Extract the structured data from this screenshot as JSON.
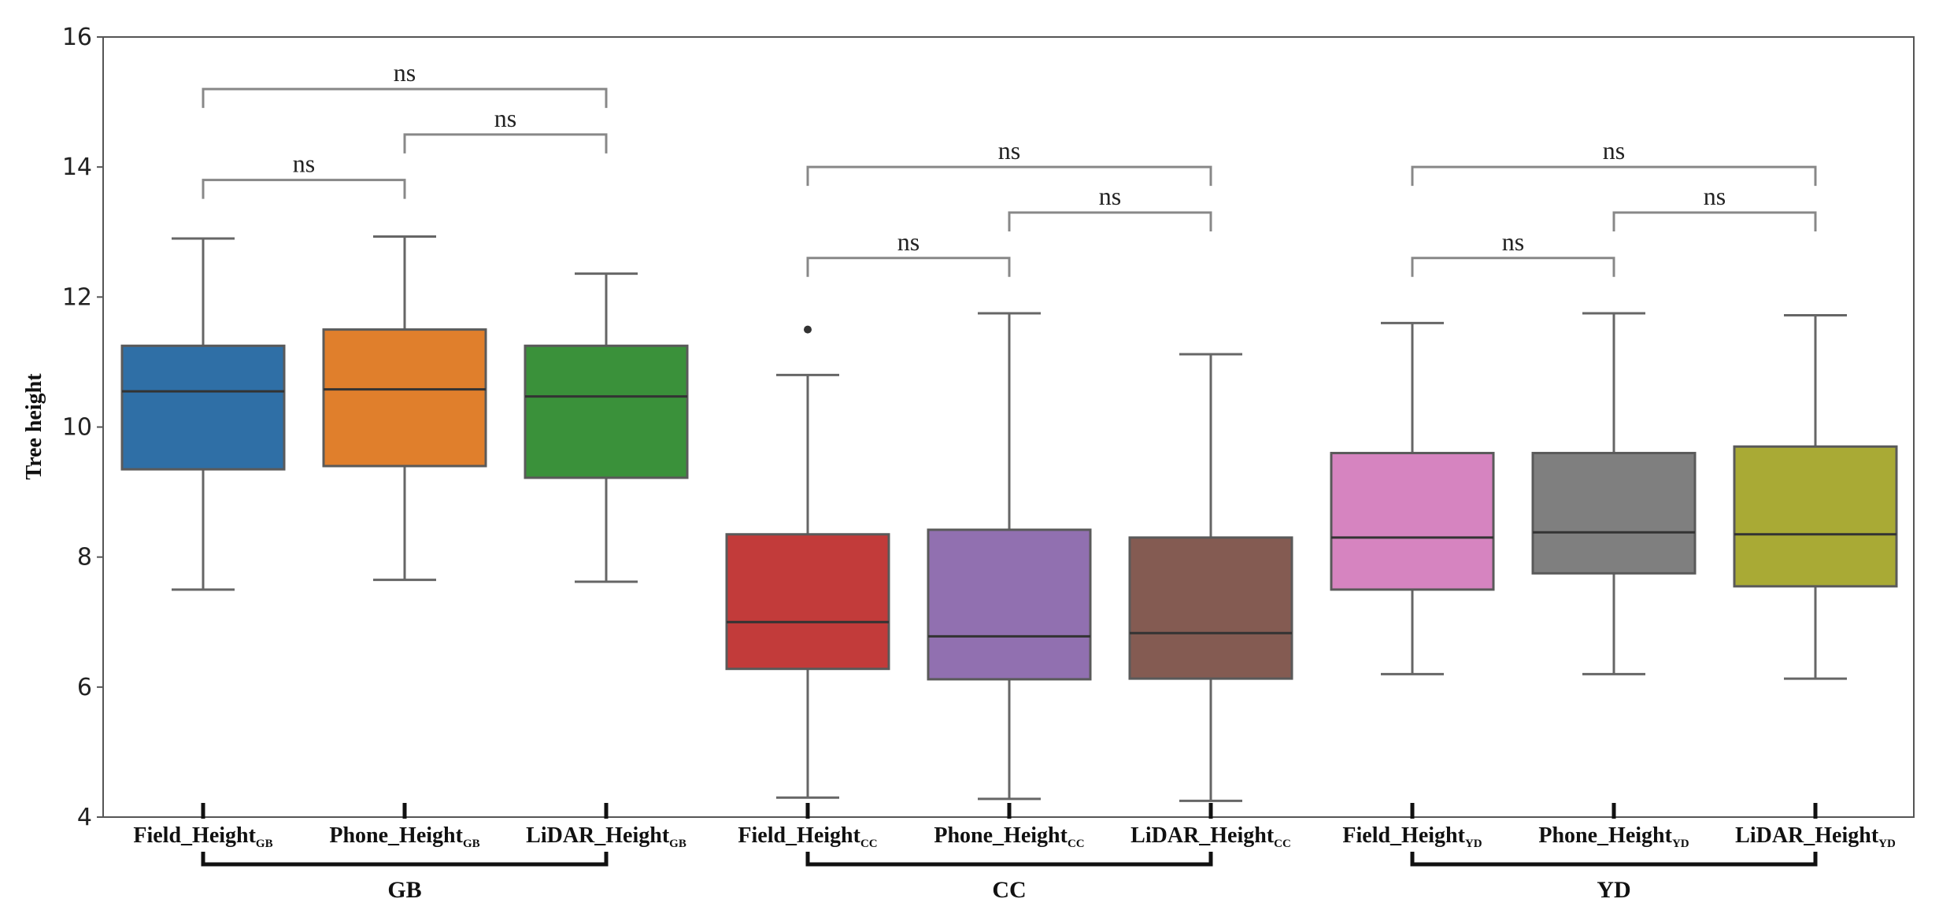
{
  "chart_data": {
    "type": "box",
    "title": "",
    "xlabel": "",
    "ylabel": "Tree height",
    "ylim": [
      4,
      16
    ],
    "yticks": [
      "4",
      "6",
      "8",
      "10",
      "12",
      "14",
      "16"
    ],
    "grid": false,
    "categories": [
      {
        "main": "Field_Height",
        "sub": "GB",
        "color": "#2f6fa6",
        "whisker_low": 7.5,
        "q1": 9.35,
        "median": 10.55,
        "q3": 11.25,
        "whisker_high": 12.9,
        "outliers": []
      },
      {
        "main": "Phone_Height",
        "sub": "GB",
        "color": "#e07f2c",
        "whisker_low": 7.65,
        "q1": 9.4,
        "median": 10.58,
        "q3": 11.5,
        "whisker_high": 12.93,
        "outliers": []
      },
      {
        "main": "LiDAR_Height",
        "sub": "GB",
        "color": "#3a913a",
        "whisker_low": 7.62,
        "q1": 9.22,
        "median": 10.47,
        "q3": 11.25,
        "whisker_high": 12.36,
        "outliers": []
      },
      {
        "main": "Field_Height",
        "sub": "CC",
        "color": "#c23b3a",
        "whisker_low": 4.3,
        "q1": 6.28,
        "median": 7.0,
        "q3": 8.35,
        "whisker_high": 10.8,
        "outliers": [
          11.5
        ]
      },
      {
        "main": "Phone_Height",
        "sub": "CC",
        "color": "#9170b0",
        "whisker_low": 4.28,
        "q1": 6.12,
        "median": 6.78,
        "q3": 8.42,
        "whisker_high": 11.75,
        "outliers": []
      },
      {
        "main": "LiDAR_Height",
        "sub": "CC",
        "color": "#845b52",
        "whisker_low": 4.25,
        "q1": 6.13,
        "median": 6.83,
        "q3": 8.3,
        "whisker_high": 11.12,
        "outliers": []
      },
      {
        "main": "Field_Height",
        "sub": "YD",
        "color": "#d684c0",
        "whisker_low": 6.2,
        "q1": 7.5,
        "median": 8.3,
        "q3": 9.6,
        "whisker_high": 11.6,
        "outliers": []
      },
      {
        "main": "Phone_Height",
        "sub": "YD",
        "color": "#7f7f7f",
        "whisker_low": 6.2,
        "q1": 7.75,
        "median": 8.38,
        "q3": 9.6,
        "whisker_high": 11.75,
        "outliers": []
      },
      {
        "main": "LiDAR_Height",
        "sub": "YD",
        "color": "#a9aa35",
        "whisker_low": 6.13,
        "q1": 7.55,
        "median": 8.35,
        "q3": 9.7,
        "whisker_high": 11.72,
        "outliers": []
      }
    ],
    "groups": [
      {
        "label": "GB",
        "from": 0,
        "to": 2
      },
      {
        "label": "CC",
        "from": 3,
        "to": 5
      },
      {
        "label": "YD",
        "from": 6,
        "to": 8
      }
    ],
    "significance": [
      {
        "from": 0,
        "to": 2,
        "y": 15.2,
        "label": "ns"
      },
      {
        "from": 1,
        "to": 2,
        "y": 14.5,
        "label": "ns"
      },
      {
        "from": 0,
        "to": 1,
        "y": 13.8,
        "label": "ns"
      },
      {
        "from": 3,
        "to": 5,
        "y": 14.0,
        "label": "ns"
      },
      {
        "from": 4,
        "to": 5,
        "y": 13.3,
        "label": "ns"
      },
      {
        "from": 3,
        "to": 4,
        "y": 12.6,
        "label": "ns"
      },
      {
        "from": 6,
        "to": 8,
        "y": 14.0,
        "label": "ns"
      },
      {
        "from": 7,
        "to": 8,
        "y": 13.3,
        "label": "ns"
      },
      {
        "from": 6,
        "to": 7,
        "y": 12.6,
        "label": "ns"
      }
    ]
  }
}
